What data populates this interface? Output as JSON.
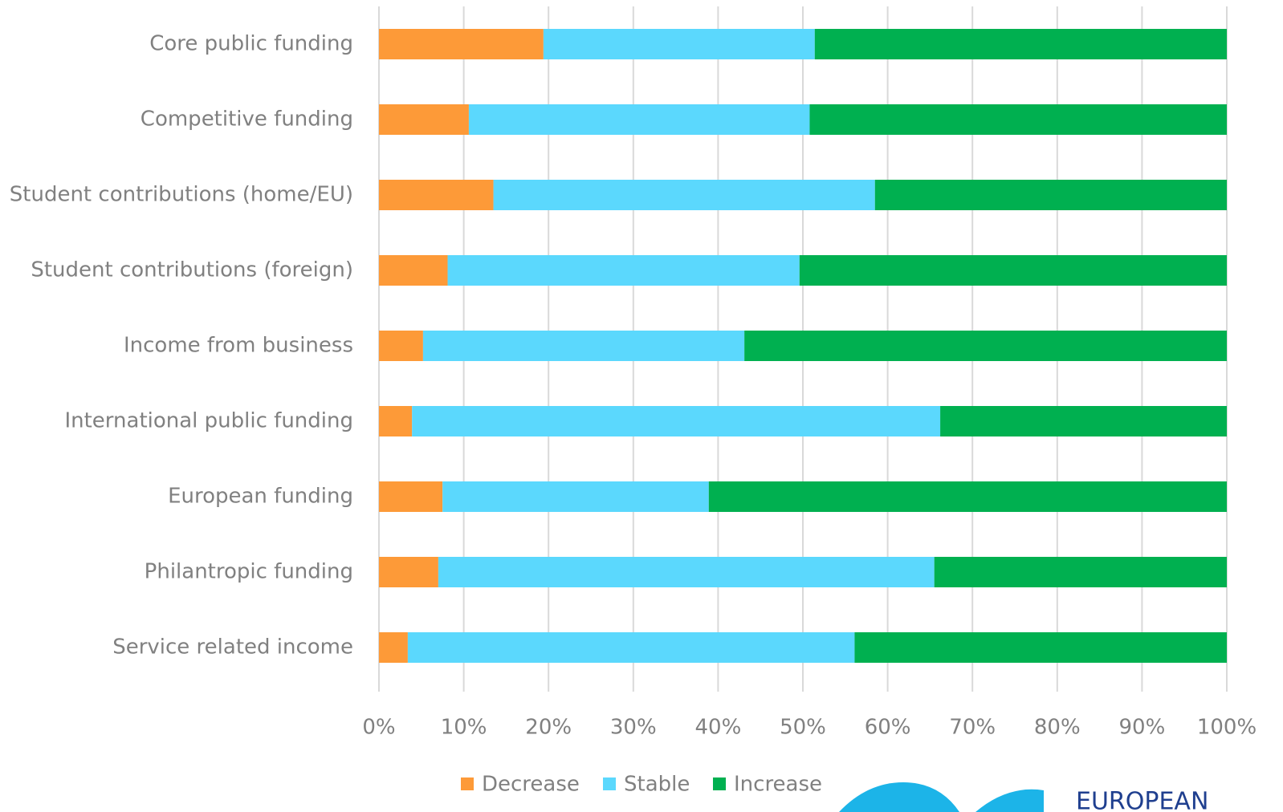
{
  "chart_data": {
    "type": "stacked-bar-horizontal",
    "categories": [
      "Core public funding",
      "Competitive funding",
      "Student contributions (home/EU)",
      "Student contributions (foreign)",
      "Income from business",
      "International public funding",
      "European funding",
      "Philantropic funding",
      "Service related income"
    ],
    "series": [
      {
        "name": "Decrease",
        "color": "#fd9a38",
        "values": [
          19.4,
          10.6,
          13.5,
          8.1,
          5.2,
          3.9,
          7.5,
          7.0,
          3.4
        ]
      },
      {
        "name": "Stable",
        "color": "#5bd8fd",
        "values": [
          32.0,
          40.2,
          45.0,
          41.5,
          37.9,
          62.3,
          31.4,
          58.5,
          52.7
        ]
      },
      {
        "name": "Increase",
        "color": "#00b050",
        "values": [
          48.6,
          49.2,
          41.5,
          50.4,
          56.9,
          33.8,
          61.1,
          34.5,
          43.9
        ]
      }
    ],
    "xlim": [
      0,
      100
    ],
    "xticks": [
      {
        "value": 0,
        "label": "0%"
      },
      {
        "value": 10,
        "label": "10%"
      },
      {
        "value": 20,
        "label": "20%"
      },
      {
        "value": 30,
        "label": "30%"
      },
      {
        "value": 40,
        "label": "40%"
      },
      {
        "value": 50,
        "label": "50%"
      },
      {
        "value": 60,
        "label": "60%"
      },
      {
        "value": 70,
        "label": "70%"
      },
      {
        "value": 80,
        "label": "80%"
      },
      {
        "value": 90,
        "label": "90%"
      },
      {
        "value": 100,
        "label": "100%"
      }
    ],
    "grid": true,
    "legend": "bottom"
  },
  "logo_text": "EUROPEAN"
}
